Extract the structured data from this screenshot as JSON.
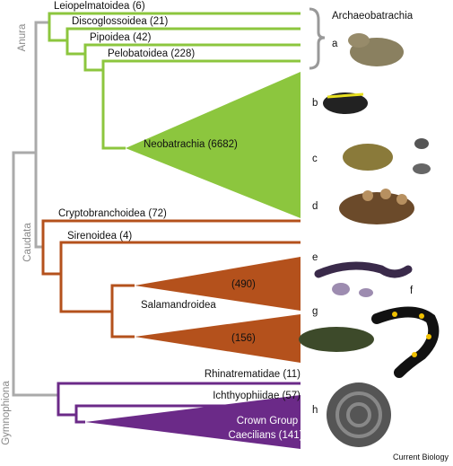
{
  "clades": {
    "anura": "Anura",
    "caudata": "Caudata",
    "gymnophiona": "Gymnophiona"
  },
  "taxa": {
    "leiopelmatoidea": "Leiopelmatoidea (6)",
    "discoglossoidea": "Discoglossoidea (21)",
    "pipoidea": "Pipoidea (42)",
    "pelobatoidea": "Pelobatoidea (228)",
    "archaeobatrachia": "Archaeobatrachia",
    "neobatrachia": "Neobatrachia (6682)",
    "cryptobranchoidea": "Cryptobranchoidea (72)",
    "sirenoidea": "Sirenoidea (4)",
    "salamandroidea_a": "(490)",
    "salamandroidea": "Salamandroidea",
    "salamandroidea_b": "(156)",
    "rhinatrematidae": "Rhinatrematidae (11)",
    "ichthyophiidae": "Ichthyophiidae (57)",
    "caecilians_line1": "Crown Group",
    "caecilians_line2": "Caecilians (141)"
  },
  "panels": [
    "a",
    "b",
    "c",
    "d",
    "e",
    "f",
    "g",
    "h"
  ],
  "footer": "Current Biology"
}
